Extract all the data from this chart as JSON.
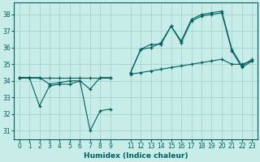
{
  "xlabel": "Humidex (Indice chaleur)",
  "bg_color": "#c8ece8",
  "grid_color": "#a8d8d4",
  "line_color": "#006060",
  "xlim": [
    -0.5,
    23.5
  ],
  "ylim": [
    30.5,
    38.7
  ],
  "yticks": [
    31,
    32,
    33,
    34,
    35,
    36,
    37,
    38
  ],
  "xticks": [
    0,
    1,
    2,
    3,
    4,
    5,
    6,
    7,
    8,
    9,
    11,
    12,
    13,
    14,
    15,
    16,
    17,
    18,
    19,
    20,
    21,
    22,
    23
  ],
  "series1": {
    "x": [
      0,
      1,
      2,
      3,
      4,
      5,
      6,
      7,
      8,
      9,
      11,
      12,
      13,
      14,
      15,
      16,
      17,
      18,
      19,
      20,
      21,
      22,
      23
    ],
    "y": [
      34.2,
      34.2,
      34.2,
      34.2,
      34.2,
      34.2,
      34.2,
      34.2,
      34.2,
      34.2,
      34.4,
      34.5,
      34.6,
      34.7,
      34.8,
      34.9,
      35.0,
      35.1,
      35.2,
      35.3,
      35.0,
      35.0,
      35.2
    ]
  },
  "series2": {
    "x": [
      0,
      1,
      2,
      3,
      4,
      5,
      6,
      7,
      8,
      9,
      11,
      12,
      13,
      14,
      15,
      16,
      17,
      18,
      19,
      20,
      21,
      22,
      23
    ],
    "y": [
      34.2,
      34.2,
      32.5,
      33.7,
      33.8,
      33.8,
      34.0,
      31.0,
      32.2,
      32.3,
      34.5,
      35.9,
      36.2,
      36.2,
      37.3,
      36.3,
      37.6,
      37.9,
      38.0,
      38.1,
      35.8,
      34.8,
      35.2
    ]
  },
  "series3": {
    "x": [
      0,
      1,
      2,
      3,
      4,
      5,
      6,
      7,
      8,
      9,
      11,
      12,
      13,
      14,
      15,
      16,
      17,
      18,
      19,
      20,
      21,
      22,
      23
    ],
    "y": [
      34.2,
      34.2,
      34.2,
      33.8,
      33.9,
      34.0,
      34.0,
      33.5,
      34.2,
      34.2,
      34.5,
      35.9,
      36.0,
      36.3,
      37.3,
      36.4,
      37.7,
      38.0,
      38.1,
      38.2,
      35.9,
      34.9,
      35.3
    ]
  }
}
